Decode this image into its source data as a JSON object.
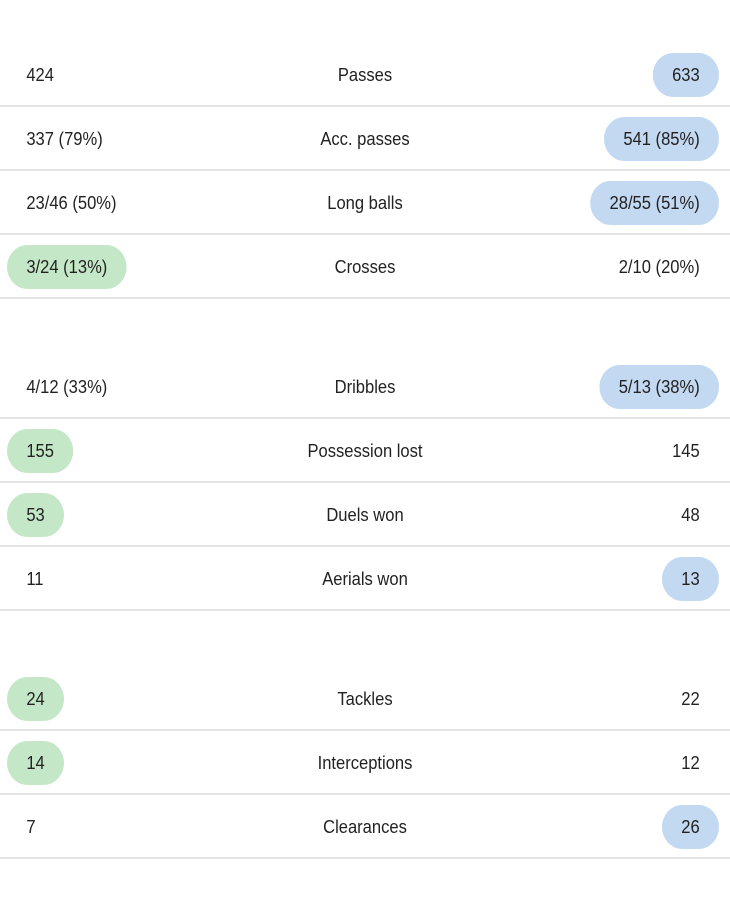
{
  "colors": {
    "home_highlight": "#c4e8c7",
    "away_highlight": "#c3d8f1",
    "divider": "#e2e2e2"
  },
  "groups": [
    {
      "rows": [
        {
          "label": "Passes",
          "home": "424",
          "away": "633",
          "winner": "away"
        },
        {
          "label": "Acc. passes",
          "home": "337 (79%)",
          "away": "541 (85%)",
          "winner": "away"
        },
        {
          "label": "Long balls",
          "home": "23/46 (50%)",
          "away": "28/55 (51%)",
          "winner": "away"
        },
        {
          "label": "Crosses",
          "home": "3/24 (13%)",
          "away": "2/10 (20%)",
          "winner": "home"
        }
      ]
    },
    {
      "rows": [
        {
          "label": "Dribbles",
          "home": "4/12 (33%)",
          "away": "5/13 (38%)",
          "winner": "away"
        },
        {
          "label": "Possession lost",
          "home": "155",
          "away": "145",
          "winner": "home"
        },
        {
          "label": "Duels won",
          "home": "53",
          "away": "48",
          "winner": "home"
        },
        {
          "label": "Aerials won",
          "home": "11",
          "away": "13",
          "winner": "away"
        }
      ]
    },
    {
      "rows": [
        {
          "label": "Tackles",
          "home": "24",
          "away": "22",
          "winner": "home"
        },
        {
          "label": "Interceptions",
          "home": "14",
          "away": "12",
          "winner": "home"
        },
        {
          "label": "Clearances",
          "home": "7",
          "away": "26",
          "winner": "away"
        }
      ]
    }
  ]
}
